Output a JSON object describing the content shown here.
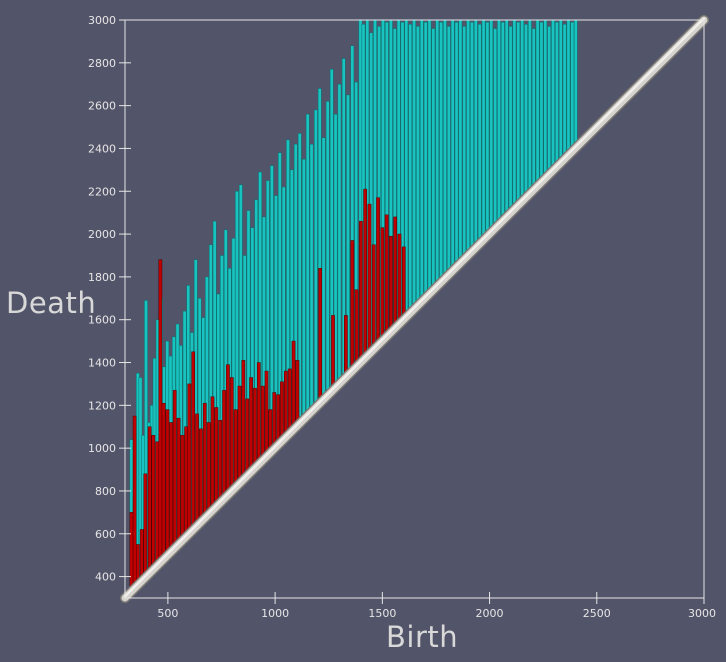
{
  "chart_data": {
    "type": "persistence-diagram",
    "xlabel": "Birth",
    "ylabel": "Death",
    "xlim": [
      300,
      3000
    ],
    "ylim": [
      300,
      3000
    ],
    "x_ticks": [
      500,
      1000,
      1500,
      2000,
      2500,
      3000
    ],
    "y_ticks": [
      400,
      600,
      800,
      1000,
      1200,
      1400,
      1600,
      1800,
      2000,
      2200,
      2400,
      2600,
      2800,
      3000
    ],
    "diagonal": {
      "from": [
        300,
        300
      ],
      "to": [
        3000,
        3000
      ]
    },
    "colors": {
      "background": "#525469",
      "cyan": "#19c4c0",
      "cyan_edge": "#0c6f6e",
      "red": "#c00000",
      "red_edge": "#4d0000",
      "diagonal": "#d7d3ce",
      "frame": "#e6e6e6"
    },
    "series": [
      {
        "dimension": 1,
        "color": "cyan",
        "points": [
          [
            330,
            1040
          ],
          [
            345,
            760
          ],
          [
            360,
            1350
          ],
          [
            372,
            1330
          ],
          [
            385,
            1060
          ],
          [
            398,
            1690
          ],
          [
            412,
            1120
          ],
          [
            425,
            1200
          ],
          [
            438,
            1420
          ],
          [
            452,
            1600
          ],
          [
            468,
            1700
          ],
          [
            482,
            1380
          ],
          [
            497,
            1500
          ],
          [
            512,
            1430
          ],
          [
            528,
            1520
          ],
          [
            545,
            1580
          ],
          [
            560,
            1480
          ],
          [
            578,
            1640
          ],
          [
            595,
            1760
          ],
          [
            612,
            1540
          ],
          [
            630,
            1880
          ],
          [
            648,
            1700
          ],
          [
            665,
            1610
          ],
          [
            682,
            1800
          ],
          [
            700,
            1950
          ],
          [
            718,
            2060
          ],
          [
            735,
            1720
          ],
          [
            752,
            1900
          ],
          [
            770,
            2020
          ],
          [
            788,
            1840
          ],
          [
            806,
            1980
          ],
          [
            822,
            2200
          ],
          [
            840,
            2230
          ],
          [
            858,
            1900
          ],
          [
            876,
            2110
          ],
          [
            894,
            2030
          ],
          [
            912,
            2160
          ],
          [
            930,
            2290
          ],
          [
            948,
            2080
          ],
          [
            966,
            2250
          ],
          [
            985,
            2320
          ],
          [
            1004,
            2180
          ],
          [
            1022,
            2380
          ],
          [
            1040,
            2220
          ],
          [
            1060,
            2440
          ],
          [
            1078,
            2300
          ],
          [
            1096,
            2420
          ],
          [
            1115,
            2470
          ],
          [
            1134,
            2350
          ],
          [
            1152,
            2560
          ],
          [
            1170,
            2420
          ],
          [
            1190,
            2580
          ],
          [
            1208,
            2680
          ],
          [
            1226,
            2450
          ],
          [
            1245,
            2620
          ],
          [
            1264,
            2770
          ],
          [
            1282,
            2560
          ],
          [
            1300,
            2700
          ],
          [
            1320,
            2820
          ],
          [
            1340,
            2650
          ],
          [
            1360,
            2880
          ],
          [
            1378,
            2710
          ],
          [
            1398,
            3000
          ],
          [
            1412,
            2980
          ],
          [
            1430,
            3000
          ],
          [
            1448,
            2940
          ],
          [
            1466,
            3000
          ],
          [
            1485,
            2970
          ],
          [
            1503,
            3000
          ],
          [
            1521,
            2990
          ],
          [
            1540,
            3000
          ],
          [
            1558,
            2960
          ],
          [
            1576,
            3000
          ],
          [
            1594,
            2990
          ],
          [
            1612,
            3000
          ],
          [
            1630,
            2980
          ],
          [
            1648,
            3000
          ],
          [
            1666,
            2970
          ],
          [
            1684,
            3000
          ],
          [
            1702,
            2990
          ],
          [
            1720,
            3000
          ],
          [
            1738,
            2960
          ],
          [
            1756,
            3000
          ],
          [
            1774,
            2990
          ],
          [
            1792,
            3000
          ],
          [
            1810,
            2970
          ],
          [
            1828,
            3000
          ],
          [
            1846,
            2990
          ],
          [
            1864,
            3000
          ],
          [
            1882,
            2970
          ],
          [
            1900,
            3000
          ],
          [
            1918,
            2990
          ],
          [
            1936,
            3000
          ],
          [
            1954,
            2980
          ],
          [
            1972,
            3000
          ],
          [
            1990,
            2990
          ],
          [
            2008,
            3000
          ],
          [
            2026,
            2960
          ],
          [
            2044,
            3000
          ],
          [
            2062,
            2990
          ],
          [
            2080,
            3000
          ],
          [
            2098,
            2970
          ],
          [
            2116,
            3000
          ],
          [
            2134,
            2990
          ],
          [
            2152,
            3000
          ],
          [
            2170,
            2980
          ],
          [
            2188,
            3000
          ],
          [
            2206,
            2960
          ],
          [
            2224,
            3000
          ],
          [
            2242,
            2990
          ],
          [
            2260,
            3000
          ],
          [
            2278,
            2970
          ],
          [
            2296,
            3000
          ],
          [
            2314,
            2990
          ],
          [
            2332,
            3000
          ],
          [
            2350,
            2980
          ],
          [
            2368,
            3000
          ],
          [
            2386,
            2990
          ],
          [
            2402,
            3000
          ]
        ]
      },
      {
        "dimension": 0,
        "color": "red",
        "points": [
          [
            330,
            700
          ],
          [
            345,
            1150
          ],
          [
            360,
            550
          ],
          [
            378,
            620
          ],
          [
            395,
            880
          ],
          [
            415,
            1100
          ],
          [
            432,
            1060
          ],
          [
            450,
            1030
          ],
          [
            465,
            1880
          ],
          [
            480,
            1210
          ],
          [
            498,
            1180
          ],
          [
            515,
            1120
          ],
          [
            532,
            1270
          ],
          [
            550,
            1140
          ],
          [
            568,
            1060
          ],
          [
            585,
            1100
          ],
          [
            600,
            1300
          ],
          [
            618,
            1450
          ],
          [
            636,
            1160
          ],
          [
            654,
            1090
          ],
          [
            672,
            1210
          ],
          [
            690,
            1120
          ],
          [
            708,
            1240
          ],
          [
            726,
            1190
          ],
          [
            744,
            1130
          ],
          [
            762,
            1270
          ],
          [
            780,
            1390
          ],
          [
            798,
            1330
          ],
          [
            816,
            1180
          ],
          [
            834,
            1290
          ],
          [
            852,
            1410
          ],
          [
            870,
            1230
          ],
          [
            888,
            1330
          ],
          [
            906,
            1280
          ],
          [
            924,
            1400
          ],
          [
            942,
            1290
          ],
          [
            960,
            1360
          ],
          [
            978,
            1180
          ],
          [
            996,
            1260
          ],
          [
            1014,
            1250
          ],
          [
            1032,
            1310
          ],
          [
            1050,
            1360
          ],
          [
            1068,
            1370
          ],
          [
            1086,
            1500
          ],
          [
            1104,
            1410
          ],
          [
            1210,
            1840
          ],
          [
            1270,
            1620
          ],
          [
            1330,
            1620
          ],
          [
            1360,
            1970
          ],
          [
            1380,
            1740
          ],
          [
            1400,
            2060
          ],
          [
            1420,
            2210
          ],
          [
            1440,
            2140
          ],
          [
            1460,
            1950
          ],
          [
            1480,
            2170
          ],
          [
            1500,
            2030
          ],
          [
            1520,
            2090
          ],
          [
            1540,
            1990
          ],
          [
            1560,
            2080
          ],
          [
            1580,
            2000
          ],
          [
            1600,
            1940
          ]
        ]
      }
    ]
  }
}
